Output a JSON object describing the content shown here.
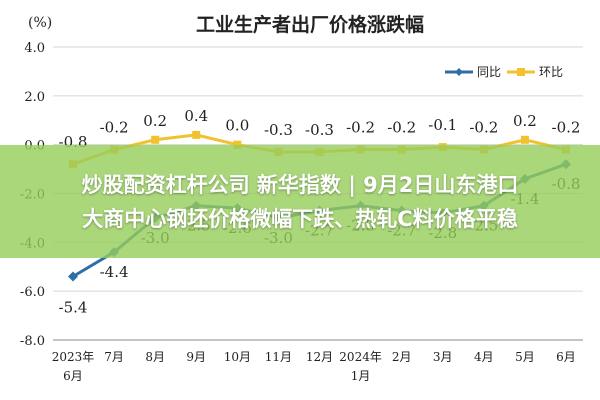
{
  "chart_data": {
    "type": "line",
    "title": "工业生产者出厂价格涨跌幅",
    "unit": "(%)",
    "ylim": [
      -8.0,
      4.0
    ],
    "yticks": [
      "4.0",
      "2.0",
      "0.0",
      "-2.0",
      "-4.0",
      "-6.0",
      "-8.0"
    ],
    "categories": [
      "2023年 6月",
      "7月",
      "8月",
      "9月",
      "10月",
      "11月",
      "12月",
      "2024年 1月",
      "2月",
      "3月",
      "4月",
      "5月",
      "6月"
    ],
    "category_labels": [
      [
        "2023年",
        "6月"
      ],
      [
        "7月"
      ],
      [
        "8月"
      ],
      [
        "9月"
      ],
      [
        "10月"
      ],
      [
        "11月"
      ],
      [
        "12月"
      ],
      [
        "2024年",
        "1月"
      ],
      [
        "2月"
      ],
      [
        "3月"
      ],
      [
        "4月"
      ],
      [
        "5月"
      ],
      [
        "6月"
      ]
    ],
    "series": [
      {
        "name": "同比",
        "color": "#2e6ea6",
        "values": [
          -5.4,
          -4.4,
          -3.0,
          -2.5,
          -2.6,
          -3.0,
          -2.7,
          -2.5,
          -2.7,
          -2.8,
          -2.5,
          -1.4,
          -0.8
        ],
        "labels": [
          "-5.4",
          "-4.4",
          "-3.0",
          "-2.5",
          "-2.6",
          "-3.0",
          "-2.7",
          "-2.5",
          "-2.7",
          "-2.8",
          "-2.5",
          "-1.4",
          "-0.8"
        ]
      },
      {
        "name": "环比",
        "color": "#f2c12e",
        "values": [
          -0.8,
          -0.2,
          0.2,
          0.4,
          0.0,
          -0.3,
          -0.3,
          -0.2,
          -0.2,
          -0.1,
          -0.2,
          0.2,
          -0.2
        ],
        "labels": [
          "-0.8",
          "-0.2",
          "0.2",
          "0.4",
          "0.0",
          "-0.3",
          "-0.3",
          "-0.2",
          "-0.2",
          "-0.1",
          "-0.2",
          "0.2",
          "-0.2"
        ]
      }
    ],
    "grid": true,
    "legend_position": "top-right"
  },
  "banner": {
    "line1": "炒股配资杠杆公司 新华指数 | 9月2日山东港口",
    "line2": "大商中心钢坯价格微幅下跌、热轧C料价格平稳"
  }
}
